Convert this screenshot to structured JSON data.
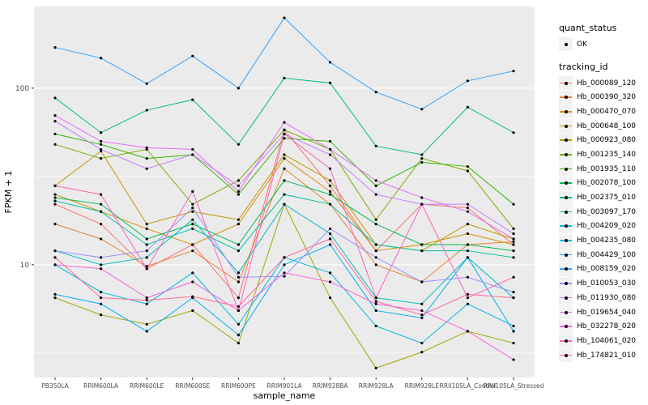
{
  "colors": {
    "panel_background": "#EBEBEB",
    "gridline": "#FFFFFF",
    "point": "#000000",
    "legend_key": "#F2F2F2",
    "tick_mark": "#333333",
    "tick_text": "#4D4D4D"
  },
  "legend": {
    "quant_status_title": "quant_status",
    "quant_status_items": [
      {
        "label": "OK",
        "marker": "point"
      }
    ],
    "tracking_id_title": "tracking_id"
  },
  "chart_data": {
    "type": "line",
    "title": "",
    "xlabel": "sample_name",
    "ylabel": "FPKM + 1",
    "y_scale": "log10",
    "grid": true,
    "legend_position": "right",
    "y_ticks": [
      10,
      100
    ],
    "y_minor_ticks": [
      3.162,
      31.62
    ],
    "ylim": [
      2.3,
      290
    ],
    "categories": [
      "PB350LA",
      "RRIM600LA",
      "RRIM600LE",
      "RRIM600SE",
      "RRIM600PE",
      "RRIM901LA",
      "RRIM928BA",
      "RRIM928LA",
      "RRIM928LE",
      "RRII105LA_Control",
      "RRII105LA_Stressed"
    ],
    "series": [
      {
        "name": "Hb_000089_120",
        "color": "#F8766D",
        "values": [
          22,
          17,
          9.5,
          13,
          6.5,
          58,
          28,
          12,
          22,
          21,
          13
        ]
      },
      {
        "name": "Hb_000390_320",
        "color": "#EA8331",
        "values": [
          17,
          14,
          9.8,
          12,
          8,
          35,
          22,
          10,
          8,
          13,
          13.5
        ]
      },
      {
        "name": "Hb_000470_070",
        "color": "#D89000",
        "values": [
          25,
          20,
          16,
          13,
          17,
          40,
          26,
          12,
          13,
          15,
          13
        ]
      },
      {
        "name": "Hb_000648_100",
        "color": "#C09B00",
        "values": [
          28,
          44,
          17,
          20,
          18,
          42,
          30,
          13,
          12,
          17,
          14
        ]
      },
      {
        "name": "Hb_000923_080",
        "color": "#A3A500",
        "values": [
          6.5,
          5.2,
          4.6,
          5.5,
          3.6,
          22,
          6.5,
          2.6,
          3.2,
          4.2,
          3.6
        ]
      },
      {
        "name": "Hb_001235_140",
        "color": "#7CAE00",
        "values": [
          48,
          40,
          45,
          22,
          30,
          58,
          45,
          18,
          40,
          34,
          16
        ]
      },
      {
        "name": "Hb_001935_110",
        "color": "#39B600",
        "values": [
          55,
          48,
          40,
          42,
          25,
          52,
          50,
          28,
          38,
          36,
          22
        ]
      },
      {
        "name": "Hb_002078_100",
        "color": "#00BB4E",
        "values": [
          24,
          22,
          14,
          17,
          13,
          30,
          25,
          17,
          13,
          13,
          12
        ]
      },
      {
        "name": "Hb_002375_010",
        "color": "#00BF7D",
        "values": [
          88,
          56,
          75,
          86,
          48,
          114,
          107,
          47,
          42,
          78,
          56
        ]
      },
      {
        "name": "Hb_003097_170",
        "color": "#00C1A3",
        "values": [
          23,
          20,
          13,
          16,
          12,
          25,
          22,
          13,
          12,
          12,
          11
        ]
      },
      {
        "name": "Hb_004209_020",
        "color": "#00BFC4",
        "values": [
          12,
          10,
          11,
          18,
          9,
          22,
          15,
          6.5,
          6,
          11,
          6.5
        ]
      },
      {
        "name": "Hb_004235_080",
        "color": "#00BAE0",
        "values": [
          10,
          7,
          6,
          9,
          4.6,
          11,
          9,
          4.5,
          3.6,
          6,
          4.5
        ]
      },
      {
        "name": "Hb_004429_100",
        "color": "#00B0F6",
        "values": [
          6.8,
          6,
          4.2,
          6.5,
          4,
          10,
          13,
          5.5,
          5,
          11,
          4.2
        ]
      },
      {
        "name": "Hb_008159_020",
        "color": "#35A2FF",
        "values": [
          170,
          148,
          106,
          152,
          100,
          250,
          140,
          95,
          76,
          110,
          125
        ]
      },
      {
        "name": "Hb_010053_030",
        "color": "#9590FF",
        "values": [
          12,
          11,
          12,
          21,
          8.5,
          8.6,
          16,
          11,
          8,
          8.5,
          7
        ]
      },
      {
        "name": "Hb_011930_080",
        "color": "#C77CFF",
        "values": [
          65,
          45,
          35,
          42,
          28,
          55,
          42,
          25,
          22,
          22,
          15
        ]
      },
      {
        "name": "Hb_019654_040",
        "color": "#E76BF3",
        "values": [
          70,
          50,
          46,
          45,
          26,
          64,
          45,
          30,
          24,
          20,
          14
        ]
      },
      {
        "name": "Hb_032278_020",
        "color": "#FA62DB",
        "values": [
          10,
          9.5,
          6.5,
          8,
          5.5,
          9,
          8,
          6,
          5.5,
          4.2,
          2.9
        ]
      },
      {
        "name": "Hb_104061_020",
        "color": "#FF62BC",
        "values": [
          28,
          25,
          9.5,
          26,
          5.5,
          55,
          35,
          6.5,
          22,
          6.5,
          8.5
        ]
      },
      {
        "name": "Hb_174821_010",
        "color": "#FF6A98",
        "values": [
          11,
          6.5,
          6.3,
          6.6,
          5.8,
          11,
          14,
          6.2,
          5.2,
          6.8,
          6.5
        ]
      }
    ]
  }
}
